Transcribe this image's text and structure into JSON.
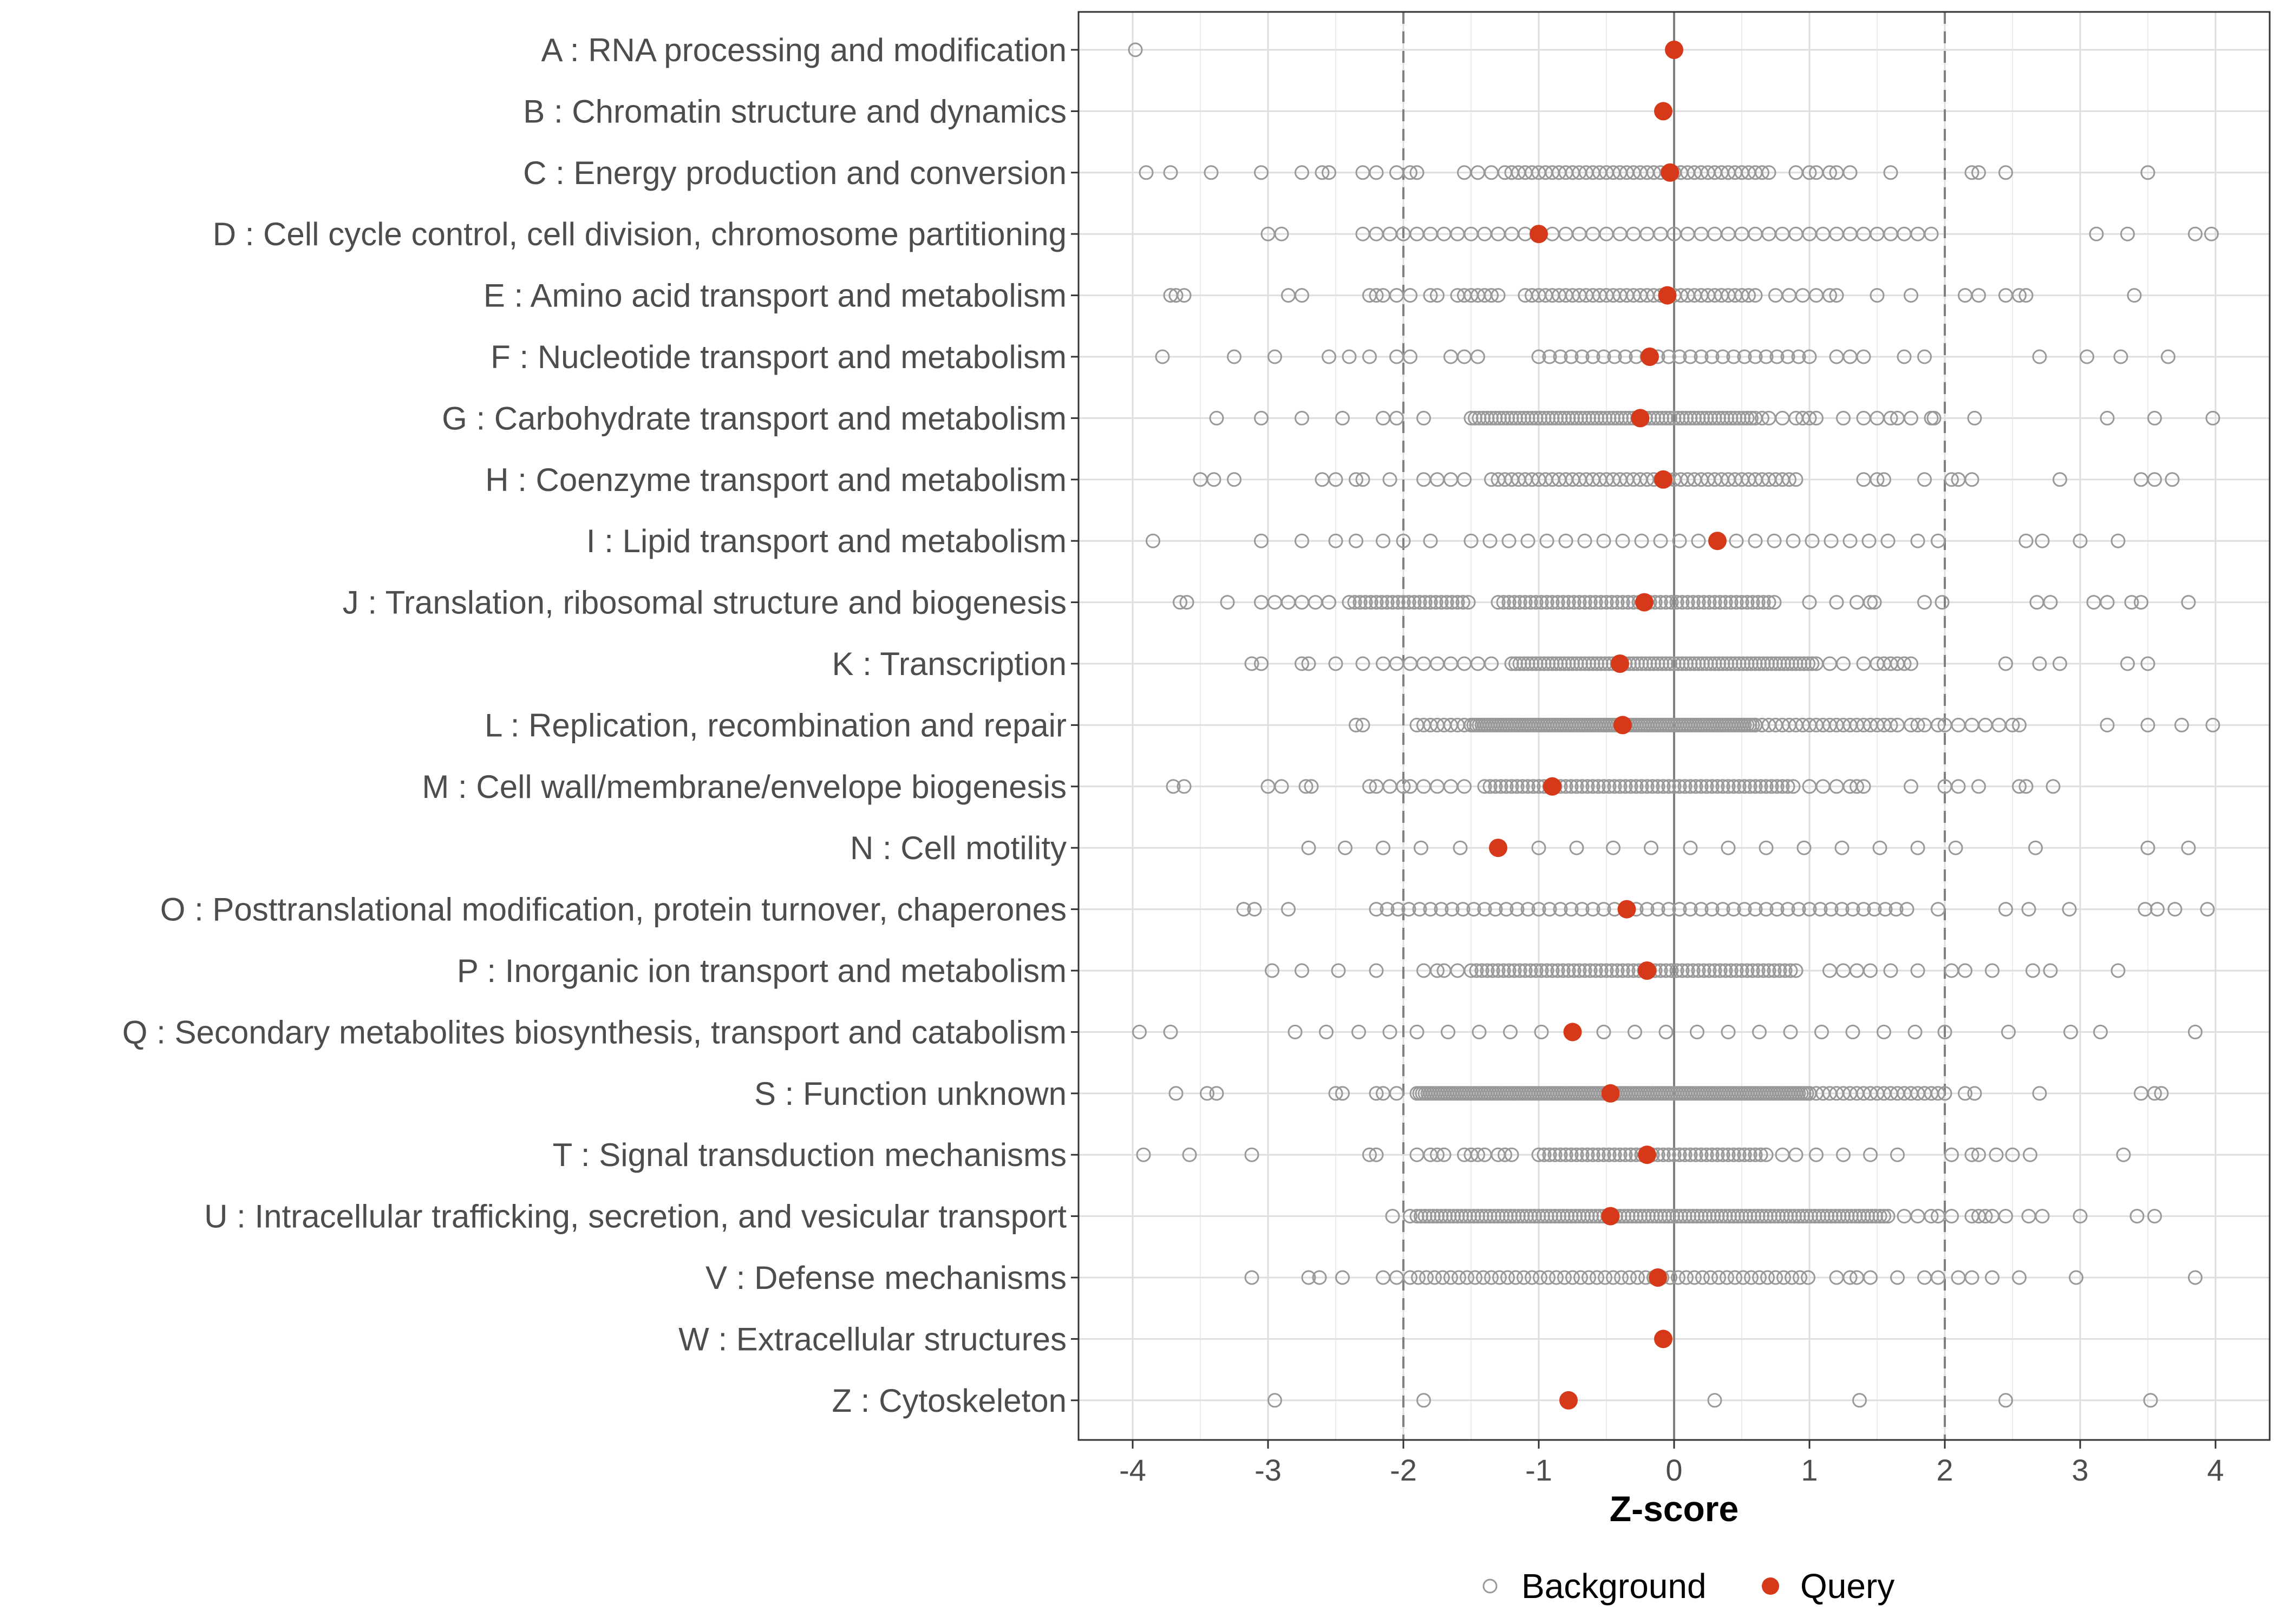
{
  "chart_data": {
    "type": "scatter",
    "title": "",
    "xlabel": "Z-score",
    "ylabel": "",
    "xlim": [
      -4.4,
      4.4
    ],
    "xticks": [
      -4,
      -3,
      -2,
      -1,
      0,
      1,
      2,
      3,
      4
    ],
    "xtick_labels": [
      "-4",
      "-3",
      "-2",
      "-1",
      "0",
      "1",
      "2",
      "3",
      "4"
    ],
    "reference_lines": {
      "dashed": [
        -2,
        2
      ],
      "solid": [
        0
      ]
    },
    "grid": true,
    "legend_position": "bottom",
    "legend": [
      {
        "name": "Background",
        "marker": "open-circle",
        "color": "#999999"
      },
      {
        "name": "Query",
        "marker": "filled-circle",
        "color": "#d6391a"
      }
    ],
    "categories": [
      "A : RNA processing and modification",
      "B : Chromatin structure and dynamics",
      "C : Energy production and conversion",
      "D : Cell cycle control, cell division, chromosome partitioning",
      "E : Amino acid transport and metabolism",
      "F : Nucleotide transport and metabolism",
      "G : Carbohydrate transport and metabolism",
      "H : Coenzyme transport and metabolism",
      "I : Lipid transport and metabolism",
      "J : Translation, ribosomal structure and biogenesis",
      "K : Transcription",
      "L : Replication, recombination and repair",
      "M : Cell wall/membrane/envelope biogenesis",
      "N : Cell motility",
      "O : Posttranslational modification, protein turnover, chaperones",
      "P : Inorganic ion transport and metabolism",
      "Q : Secondary metabolites biosynthesis, transport and catabolism",
      "S : Function unknown",
      "T : Signal transduction mechanisms",
      "U : Intracellular trafficking, secretion, and vesicular transport",
      "V : Defense mechanisms",
      "W : Extracellular structures",
      "Z : Cytoskeleton"
    ],
    "series": [
      {
        "name": "Query",
        "values": [
          0.0,
          -0.08,
          -0.03,
          -1.0,
          -0.05,
          -0.18,
          -0.25,
          -0.08,
          0.32,
          -0.22,
          -0.4,
          -0.38,
          -0.9,
          -1.3,
          -0.35,
          -0.2,
          -0.75,
          -0.47,
          -0.2,
          -0.47,
          -0.12,
          -0.08,
          -0.78
        ]
      },
      {
        "name": "Background",
        "points": [
          {
            "category": "A : RNA processing and modification",
            "segments": [],
            "extra": [
              -3.98,
              0.0
            ]
          },
          {
            "category": "B : Chromatin structure and dynamics",
            "segments": [],
            "extra": []
          },
          {
            "category": "C : Energy production and conversion",
            "segments": [
              [
                -1.25,
                0.7,
                0.05
              ]
            ],
            "extra": [
              -3.9,
              -3.72,
              -3.42,
              -3.05,
              -2.75,
              -2.6,
              -2.55,
              -2.3,
              -2.2,
              -2.05,
              -1.95,
              -1.9,
              -1.55,
              -1.45,
              -1.35,
              0.9,
              1.0,
              1.05,
              1.15,
              1.2,
              1.3,
              1.6,
              2.2,
              2.25,
              2.45,
              3.5
            ]
          },
          {
            "category": "D : Cell cycle control, cell division, chromosome partitioning",
            "segments": [
              [
                -2.3,
                1.95,
                0.1
              ]
            ],
            "extra": [
              -3.0,
              -2.9,
              3.12,
              3.35,
              3.85,
              3.97
            ]
          },
          {
            "category": "E : Amino acid transport and metabolism",
            "segments": [
              [
                -1.1,
                0.6,
                0.05
              ]
            ],
            "extra": [
              -3.72,
              -3.68,
              -3.62,
              -2.85,
              -2.75,
              -2.25,
              -2.2,
              -2.15,
              -2.05,
              -1.95,
              -1.8,
              -1.75,
              -1.6,
              -1.55,
              -1.5,
              -1.45,
              -1.4,
              -1.35,
              -1.3,
              0.75,
              0.85,
              0.95,
              1.05,
              1.15,
              1.2,
              1.5,
              1.75,
              2.15,
              2.25,
              2.45,
              2.55,
              2.6,
              3.4
            ]
          },
          {
            "category": "F : Nucleotide transport and metabolism",
            "segments": [
              [
                -1.0,
                1.0,
                0.08
              ]
            ],
            "extra": [
              -3.78,
              -3.25,
              -2.95,
              -2.55,
              -2.4,
              -2.25,
              -2.05,
              -1.95,
              -1.65,
              -1.55,
              -1.45,
              1.2,
              1.3,
              1.4,
              1.7,
              1.85,
              2.7,
              3.05,
              3.3,
              3.65
            ]
          },
          {
            "category": "G : Carbohydrate transport and metabolism",
            "segments": [
              [
                -1.5,
                0.6,
                0.03
              ]
            ],
            "extra": [
              -3.38,
              -3.05,
              -2.75,
              -2.45,
              -2.15,
              -2.05,
              -1.85,
              0.65,
              0.7,
              0.8,
              0.9,
              0.95,
              1.0,
              1.05,
              1.25,
              1.4,
              1.5,
              1.6,
              1.65,
              1.75,
              1.9,
              1.92,
              2.22,
              3.2,
              3.55,
              3.98
            ]
          },
          {
            "category": "H : Coenzyme transport and metabolism",
            "segments": [
              [
                -1.35,
                0.9,
                0.05
              ]
            ],
            "extra": [
              -3.5,
              -3.4,
              -3.25,
              -2.6,
              -2.5,
              -2.35,
              -2.3,
              -2.1,
              -1.85,
              -1.75,
              -1.65,
              -1.55,
              1.4,
              1.5,
              1.55,
              1.85,
              2.05,
              2.1,
              2.2,
              2.85,
              3.45,
              3.55,
              3.68
            ]
          },
          {
            "category": "I : Lipid transport and metabolism",
            "segments": [
              [
                -1.5,
                1.6,
                0.14
              ]
            ],
            "extra": [
              -3.85,
              -3.05,
              -2.75,
              -2.5,
              -2.35,
              -2.15,
              -2.0,
              -1.8,
              1.8,
              1.95,
              2.6,
              2.72,
              3.0,
              3.28
            ]
          },
          {
            "category": "J : Translation, ribosomal structure and biogenesis",
            "segments": [
              [
                -2.4,
                -1.5,
                0.04
              ],
              [
                -1.3,
                0.75,
                0.04
              ]
            ],
            "extra": [
              -3.65,
              -3.6,
              -3.3,
              -3.05,
              -2.95,
              -2.85,
              -2.75,
              -2.65,
              -2.55,
              1.0,
              1.2,
              1.35,
              1.45,
              1.48,
              1.85,
              1.98,
              2.68,
              2.78,
              3.1,
              3.2,
              3.38,
              3.45,
              3.8
            ]
          },
          {
            "category": "K : Transcription",
            "segments": [
              [
                -1.2,
                1.05,
                0.03
              ]
            ],
            "extra": [
              -3.12,
              -3.05,
              -2.75,
              -2.7,
              -2.5,
              -2.3,
              -2.15,
              -2.05,
              -1.95,
              -1.85,
              -1.75,
              -1.65,
              -1.55,
              -1.45,
              -1.35,
              1.15,
              1.25,
              1.4,
              1.5,
              1.55,
              1.6,
              1.65,
              1.7,
              1.75,
              2.45,
              2.7,
              2.85,
              3.35,
              3.5
            ]
          },
          {
            "category": "L : Replication, recombination and repair",
            "segments": [
              [
                -1.5,
                0.6,
                0.02
              ],
              [
                0.6,
                1.6,
                0.05
              ]
            ],
            "extra": [
              -2.35,
              -2.3,
              -1.9,
              -1.85,
              -1.8,
              -1.75,
              -1.7,
              -1.65,
              -1.6,
              -1.55,
              1.65,
              1.75,
              1.8,
              1.85,
              1.95,
              2.0,
              2.1,
              2.2,
              2.3,
              2.4,
              2.5,
              2.55,
              3.2,
              3.5,
              3.75,
              3.98
            ]
          },
          {
            "category": "M : Cell wall/membrane/envelope biogenesis",
            "segments": [
              [
                -1.4,
                0.9,
                0.04
              ]
            ],
            "extra": [
              -3.7,
              -3.62,
              -3.0,
              -2.9,
              -2.72,
              -2.68,
              -2.25,
              -2.2,
              -2.1,
              -2.0,
              -1.95,
              -1.85,
              -1.75,
              -1.65,
              -1.55,
              1.0,
              1.1,
              1.2,
              1.3,
              1.35,
              1.4,
              1.75,
              2.0,
              2.1,
              2.25,
              2.55,
              2.6,
              2.8
            ]
          },
          {
            "category": "N : Cell motility",
            "segments": [],
            "extra": [
              -2.7,
              -2.43,
              -2.15,
              -1.87,
              -1.58,
              -1.3,
              -1.0,
              -0.72,
              -0.45,
              -0.17,
              0.12,
              0.4,
              0.68,
              0.96,
              1.24,
              1.52,
              1.8,
              2.08,
              2.67,
              3.5,
              3.8
            ]
          },
          {
            "category": "O : Posttranslational modification, protein turnover, chaperones",
            "segments": [
              [
                -2.2,
                1.75,
                0.08
              ]
            ],
            "extra": [
              -3.18,
              -3.1,
              -2.85,
              1.95,
              2.45,
              2.62,
              2.92,
              3.48,
              3.57,
              3.7,
              3.94
            ]
          },
          {
            "category": "P : Inorganic ion transport and metabolism",
            "segments": [
              [
                -1.5,
                0.9,
                0.04
              ]
            ],
            "extra": [
              -2.97,
              -2.75,
              -2.48,
              -2.2,
              -1.85,
              -1.75,
              -1.7,
              -1.6,
              1.15,
              1.25,
              1.35,
              1.45,
              1.6,
              1.8,
              2.05,
              2.15,
              2.35,
              2.65,
              2.78,
              3.28
            ]
          },
          {
            "category": "Q : Secondary metabolites biosynthesis, transport and catabolism",
            "segments": [
              [
                -1.9,
                1.9,
                0.23
              ]
            ],
            "extra": [
              -3.95,
              -3.72,
              -2.8,
              -2.57,
              -2.33,
              -2.1,
              2.0,
              2.47,
              2.93,
              3.15,
              3.85
            ]
          },
          {
            "category": "S : Function unknown",
            "segments": [
              [
                -1.9,
                1.0,
                0.02
              ],
              [
                1.0,
                1.95,
                0.05
              ]
            ],
            "extra": [
              -3.68,
              -3.45,
              -3.38,
              -2.5,
              -2.45,
              -2.2,
              -2.15,
              -2.05,
              2.0,
              2.15,
              2.22,
              2.7,
              3.45,
              3.55,
              3.6
            ]
          },
          {
            "category": "T : Signal transduction mechanisms",
            "segments": [
              [
                -1.0,
                0.7,
                0.04
              ]
            ],
            "extra": [
              -3.92,
              -3.58,
              -3.12,
              -2.25,
              -2.2,
              -1.9,
              -1.8,
              -1.75,
              -1.7,
              -1.55,
              -1.5,
              -1.45,
              -1.4,
              -1.3,
              -1.25,
              -1.2,
              0.8,
              0.9,
              1.05,
              1.25,
              1.45,
              1.65,
              2.05,
              2.2,
              2.25,
              2.38,
              2.5,
              2.63,
              3.32
            ]
          },
          {
            "category": "U : Intracellular trafficking, secretion, and vesicular transport",
            "segments": [
              [
                -1.9,
                1.6,
                0.03
              ]
            ],
            "extra": [
              -2.08,
              -1.95,
              1.7,
              1.8,
              1.9,
              1.95,
              2.05,
              2.2,
              2.25,
              2.3,
              2.35,
              2.45,
              2.62,
              2.72,
              3.0,
              3.42,
              3.55
            ]
          },
          {
            "category": "V : Defense mechanisms",
            "segments": [
              [
                -1.95,
                1.0,
                0.06
              ]
            ],
            "extra": [
              -3.12,
              -2.7,
              -2.62,
              -2.45,
              -2.15,
              -2.05,
              1.2,
              1.3,
              1.35,
              1.45,
              1.65,
              1.85,
              1.95,
              2.1,
              2.2,
              2.35,
              2.55,
              2.97,
              3.85
            ]
          },
          {
            "category": "W : Extracellular structures",
            "segments": [],
            "extra": []
          },
          {
            "category": "Z : Cytoskeleton",
            "segments": [],
            "extra": [
              -2.95,
              -1.85,
              0.3,
              1.37,
              2.45,
              3.52
            ]
          }
        ]
      }
    ]
  }
}
